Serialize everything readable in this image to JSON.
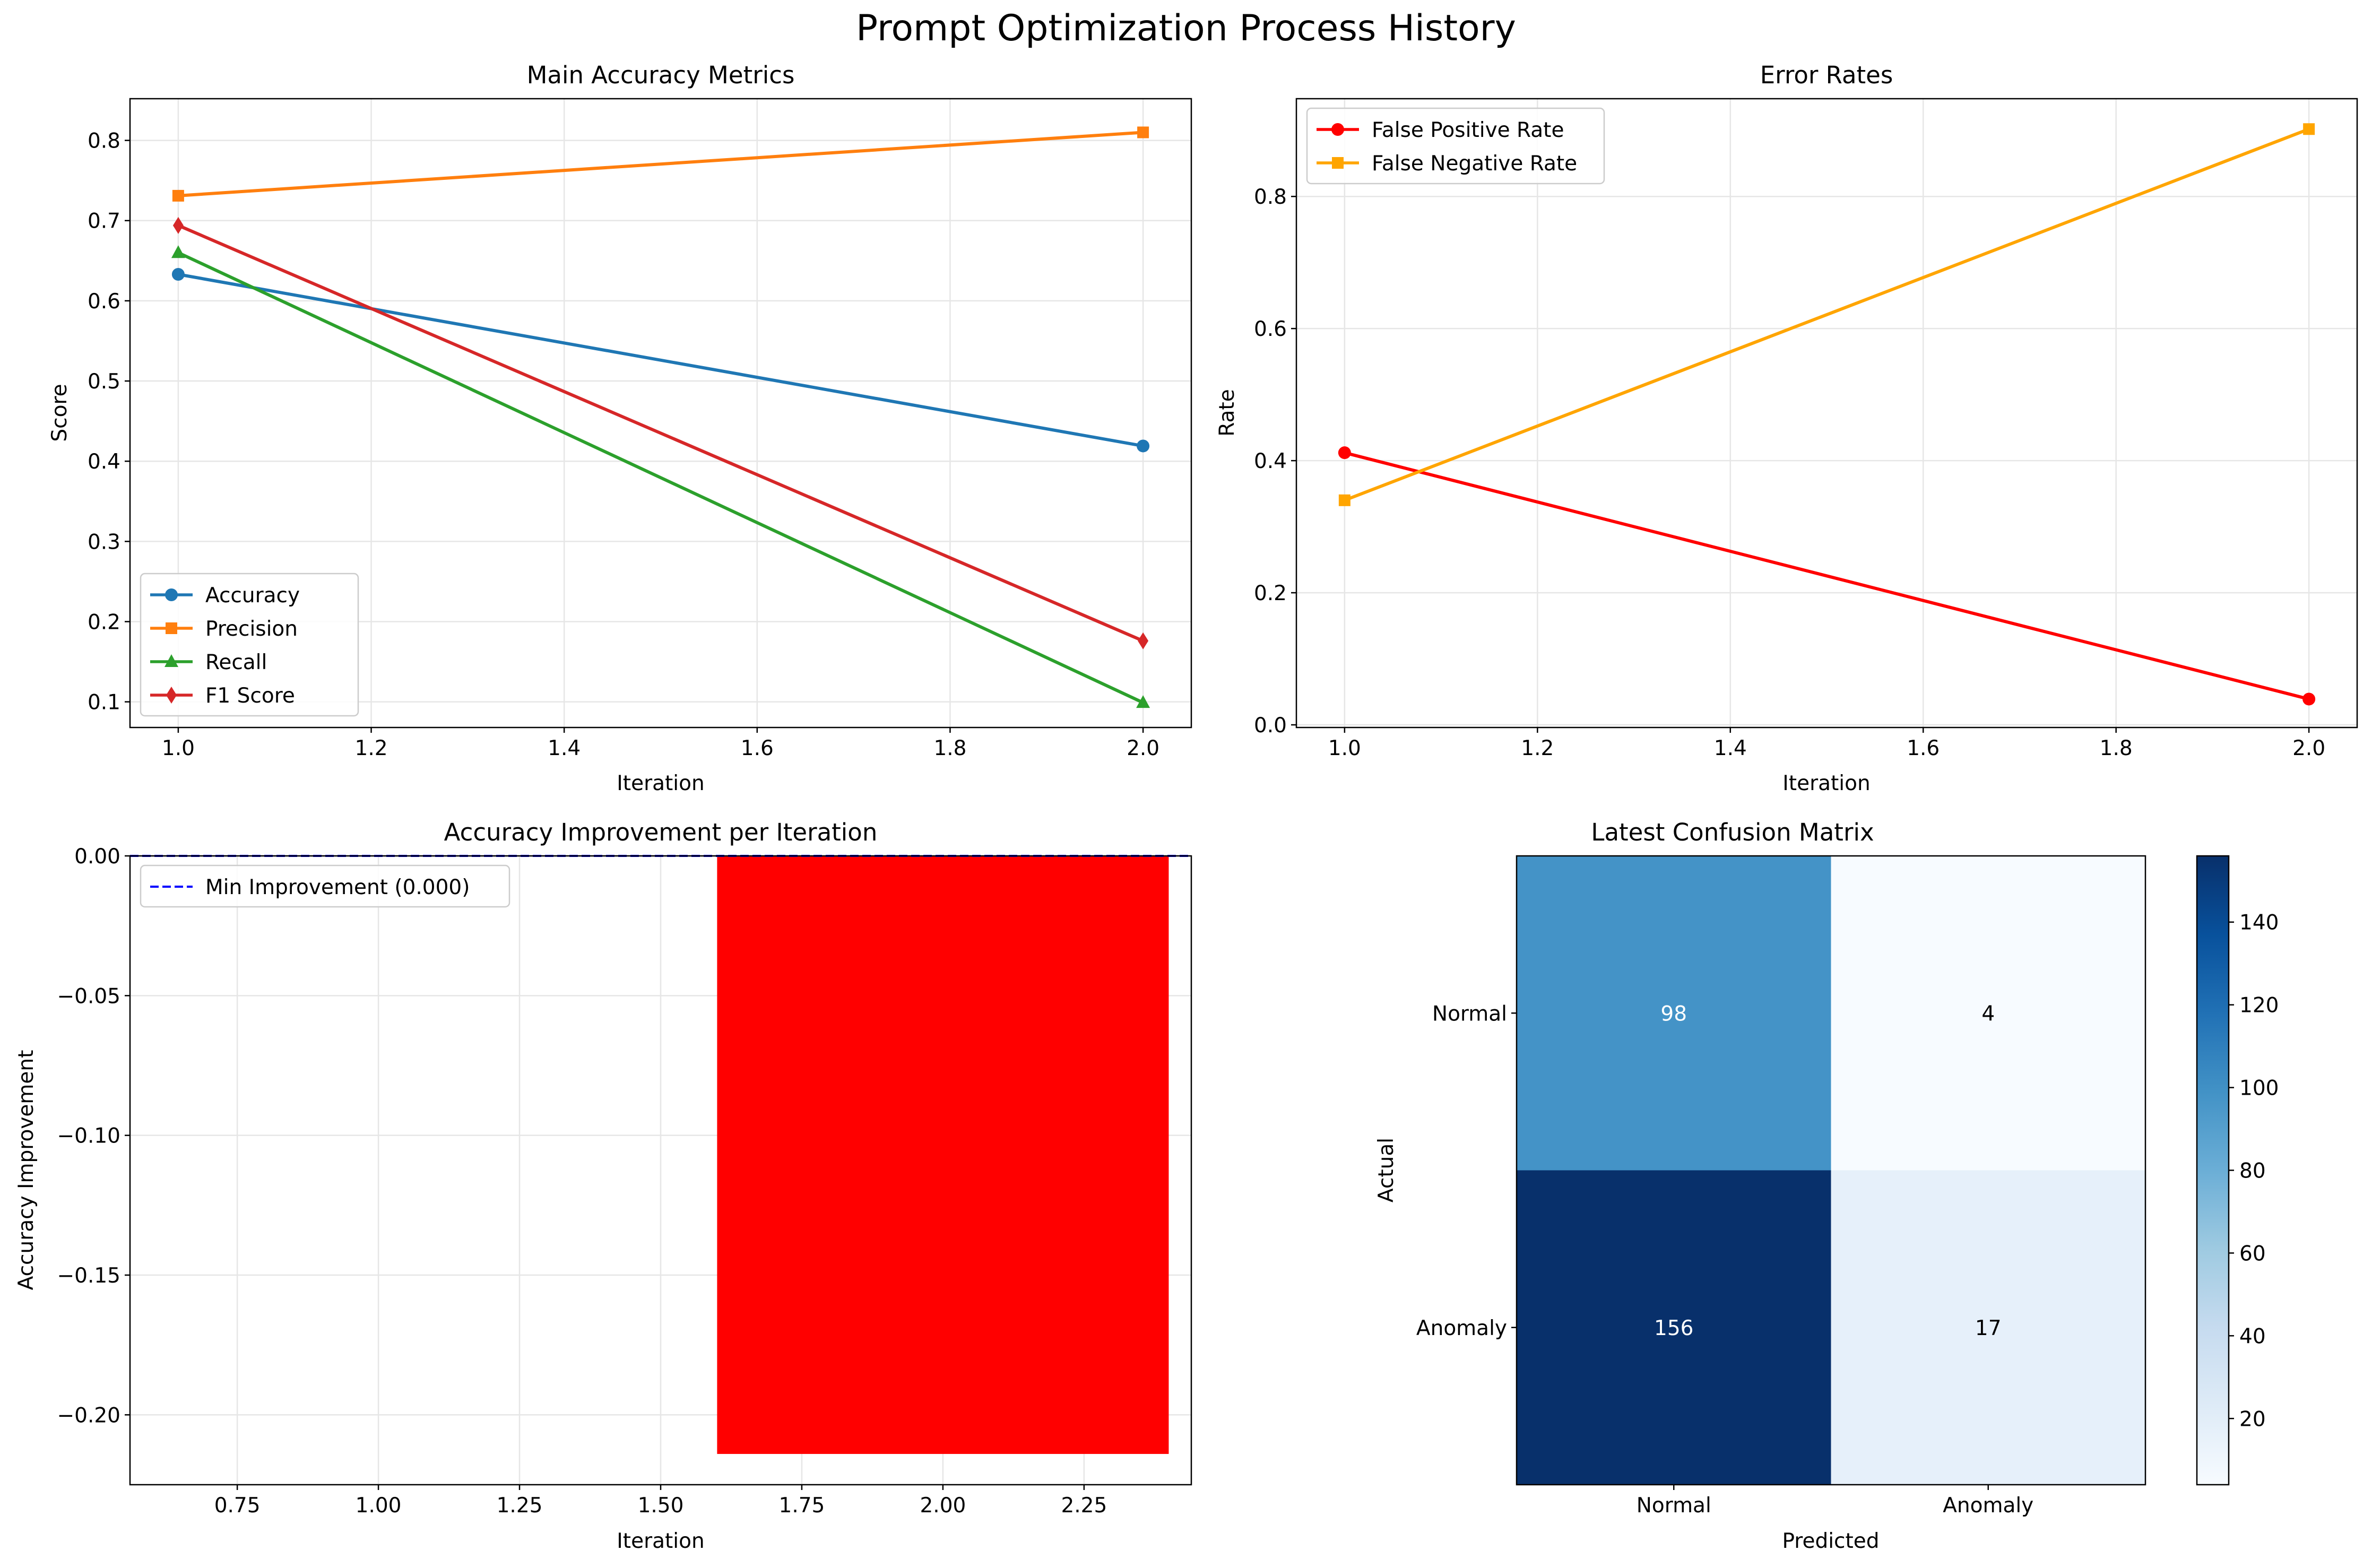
{
  "figure_title": "Prompt Optimization Process History",
  "chart_data": [
    {
      "type": "line",
      "title": "Main Accuracy Metrics",
      "xlabel": "Iteration",
      "ylabel": "Score",
      "x": [
        1.0,
        2.0
      ],
      "xlim": [
        0.95,
        2.05
      ],
      "ylim": [
        0.068,
        0.852
      ],
      "xticks": [
        "1.0",
        "1.2",
        "1.4",
        "1.6",
        "1.8",
        "2.0"
      ],
      "yticks": [
        "0.1",
        "0.2",
        "0.3",
        "0.4",
        "0.5",
        "0.6",
        "0.7",
        "0.8"
      ],
      "grid": true,
      "legend_position": "lower-left",
      "series": [
        {
          "name": "Accuracy",
          "values": [
            0.633,
            0.419
          ],
          "color": "#1f77b4",
          "marker": "circle"
        },
        {
          "name": "Precision",
          "values": [
            0.731,
            0.81
          ],
          "color": "#ff7f0e",
          "marker": "square"
        },
        {
          "name": "Recall",
          "values": [
            0.66,
            0.099
          ],
          "color": "#2ca02c",
          "marker": "triangle"
        },
        {
          "name": "F1 Score",
          "values": [
            0.694,
            0.176
          ],
          "color": "#d62728",
          "marker": "diamond"
        }
      ]
    },
    {
      "type": "line",
      "title": "Error Rates",
      "xlabel": "Iteration",
      "ylabel": "Rate",
      "x": [
        1.0,
        2.0
      ],
      "xlim": [
        0.95,
        2.05
      ],
      "ylim": [
        -0.004,
        0.948
      ],
      "xticks": [
        "1.0",
        "1.2",
        "1.4",
        "1.6",
        "1.8",
        "2.0"
      ],
      "yticks": [
        "0.0",
        "0.2",
        "0.4",
        "0.6",
        "0.8"
      ],
      "grid": true,
      "legend_position": "upper-left",
      "series": [
        {
          "name": "False Positive Rate",
          "values": [
            0.412,
            0.039
          ],
          "color": "#ff0000",
          "marker": "circle"
        },
        {
          "name": "False Negative Rate",
          "values": [
            0.34,
            0.902
          ],
          "color": "#ffa500",
          "marker": "square"
        }
      ]
    },
    {
      "type": "bar",
      "title": "Accuracy Improvement per Iteration",
      "xlabel": "Iteration",
      "ylabel": "Accuracy Improvement",
      "xlim": [
        0.56,
        2.44
      ],
      "ylim": [
        -0.225,
        0.0
      ],
      "xticks": [
        "0.75",
        "1.00",
        "1.25",
        "1.50",
        "1.75",
        "2.00",
        "2.25"
      ],
      "yticks": [
        "0.00",
        "−0.05",
        "−0.10",
        "−0.15",
        "−0.20"
      ],
      "grid": true,
      "legend_position": "upper-left",
      "bars": [
        {
          "x": 2.0,
          "width": 0.8,
          "value": -0.214,
          "color": "#ff0000"
        }
      ],
      "reference_line": {
        "name": "Min Improvement (0.000)",
        "value": 0.0,
        "color": "#0000ff",
        "style": "dashed"
      }
    },
    {
      "type": "heatmap",
      "title": "Latest Confusion Matrix",
      "xlabel": "Predicted",
      "ylabel": "Actual",
      "x_categories": [
        "Normal",
        "Anomaly"
      ],
      "y_categories": [
        "Normal",
        "Anomaly"
      ],
      "values": [
        [
          98,
          4
        ],
        [
          156,
          17
        ]
      ],
      "labels": [
        [
          "98",
          "4"
        ],
        [
          "156",
          "17"
        ]
      ],
      "colormap": "Blues",
      "vmin": 4,
      "vmax": 156,
      "colorbar_ticks": [
        "20",
        "40",
        "60",
        "80",
        "100",
        "120",
        "140"
      ]
    }
  ]
}
